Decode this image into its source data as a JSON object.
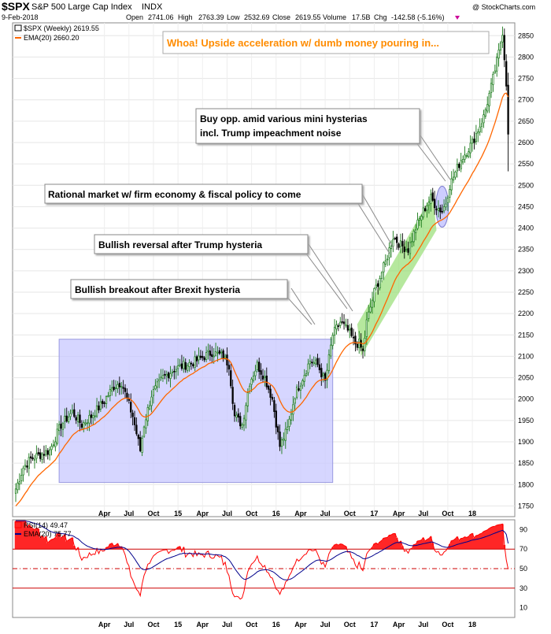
{
  "header": {
    "symbol": "$SPX",
    "name": "S&P 500 Large Cap Index",
    "exchange": "INDX",
    "date": "9-Feb-2018",
    "watermark": "@ StockCharts.com",
    "stats": {
      "open_label": "Open",
      "open": "2741.06",
      "high_label": "High",
      "high": "2763.39",
      "low_label": "Low",
      "low": "2532.69",
      "close_label": "Close",
      "close": "2619.55",
      "volume_label": "Volume",
      "volume": "17.5B",
      "chg_label": "Chg",
      "chg": "-142.58 (-5.16%)"
    }
  },
  "legend": {
    "price": "$SPX (Weekly) 2619.55",
    "ema": "EMA(20) 2660.20",
    "rsi": "RSI(14) 49.47",
    "rsi_ema": "EMA(20) 75.77"
  },
  "colors": {
    "up": "#1a7a1a",
    "down": "#000000",
    "ema": "#ff6600",
    "rsi": "#ff0000",
    "rsi_ema": "#00008b",
    "range_box": "#c8c8ff",
    "channel": "#8fdc6a",
    "title_text": "#ff8c00"
  },
  "annotations": {
    "title": "Whoa! Upside acceleration w/ dumb money pouring in...",
    "a1": "Bullish breakout after Brexit hysteria",
    "a2": "Bullish reversal after Trump hysteria",
    "a3": "Rational market w/ firm economy & fiscal policy to come",
    "a4_line1": "Buy opp. amid various mini hysterias",
    "a4_line2": "incl. Trump impeachment noise"
  },
  "chart_data": [
    {
      "type": "candlestick",
      "title": "$SPX (Weekly)",
      "ylim": [
        1725,
        2880
      ],
      "yticks": [
        1750,
        1800,
        1850,
        1900,
        1950,
        2000,
        2050,
        2100,
        2150,
        2200,
        2250,
        2300,
        2350,
        2400,
        2450,
        2500,
        2550,
        2600,
        2650,
        2700,
        2750,
        2800,
        2850
      ],
      "xticks": [
        "Apr",
        "Jul",
        "Oct",
        "15",
        "Apr",
        "Jul",
        "Oct",
        "16",
        "Apr",
        "Jul",
        "Oct",
        "17",
        "Apr",
        "Jul",
        "Oct",
        "18"
      ],
      "xtick_positions": [
        47,
        60,
        73,
        86,
        99,
        112,
        125,
        138,
        151,
        164,
        177,
        190,
        203,
        216,
        229,
        242
      ],
      "x_range": [
        0,
        262
      ],
      "series": [
        {
          "name": "$SPX (Weekly)",
          "anchors": [
            [
              0,
              1790
            ],
            [
              4,
              1840
            ],
            [
              8,
              1860
            ],
            [
              13,
              1870
            ],
            [
              18,
              1880
            ],
            [
              24,
              1940
            ],
            [
              30,
              1970
            ],
            [
              35,
              1940
            ],
            [
              40,
              1960
            ],
            [
              46,
              1990
            ],
            [
              52,
              2030
            ],
            [
              56,
              2040
            ],
            [
              62,
              1960
            ],
            [
              66,
              1880
            ],
            [
              68,
              1940
            ],
            [
              72,
              2010
            ],
            [
              78,
              2050
            ],
            [
              84,
              2070
            ],
            [
              90,
              2080
            ],
            [
              96,
              2090
            ],
            [
              100,
              2100
            ],
            [
              104,
              2110
            ],
            [
              110,
              2100
            ],
            [
              113,
              2080
            ],
            [
              116,
              1960
            ],
            [
              120,
              1940
            ],
            [
              124,
              2040
            ],
            [
              128,
              2080
            ],
            [
              132,
              2050
            ],
            [
              136,
              2000
            ],
            [
              140,
              1890
            ],
            [
              144,
              1930
            ],
            [
              148,
              2010
            ],
            [
              152,
              2050
            ],
            [
              156,
              2090
            ],
            [
              160,
              2080
            ],
            [
              164,
              2040
            ],
            [
              168,
              2150
            ],
            [
              172,
              2180
            ],
            [
              176,
              2160
            ],
            [
              180,
              2130
            ],
            [
              182,
              2130
            ],
            [
              184,
              2110
            ],
            [
              186,
              2180
            ],
            [
              190,
              2250
            ],
            [
              196,
              2320
            ],
            [
              200,
              2380
            ],
            [
              204,
              2360
            ],
            [
              208,
              2350
            ],
            [
              212,
              2400
            ],
            [
              216,
              2440
            ],
            [
              220,
              2470
            ],
            [
              223,
              2450
            ],
            [
              226,
              2440
            ],
            [
              228,
              2460
            ],
            [
              230,
              2500
            ],
            [
              236,
              2560
            ],
            [
              242,
              2600
            ],
            [
              248,
              2660
            ],
            [
              252,
              2730
            ],
            [
              256,
              2810
            ],
            [
              258,
              2860
            ],
            [
              260,
              2740
            ],
            [
              261,
              2620
            ]
          ]
        },
        {
          "name": "EMA(20)",
          "value_last": 2660.2
        }
      ]
    },
    {
      "type": "line",
      "title": "RSI(14)",
      "ylim": [
        0,
        100
      ],
      "yticks": [
        10,
        30,
        50,
        70,
        90
      ],
      "reference_lines": [
        30,
        50,
        70
      ],
      "series": [
        {
          "name": "RSI(14)",
          "value_last": 49.47
        },
        {
          "name": "EMA(20)",
          "value_last": 75.77
        }
      ]
    }
  ]
}
